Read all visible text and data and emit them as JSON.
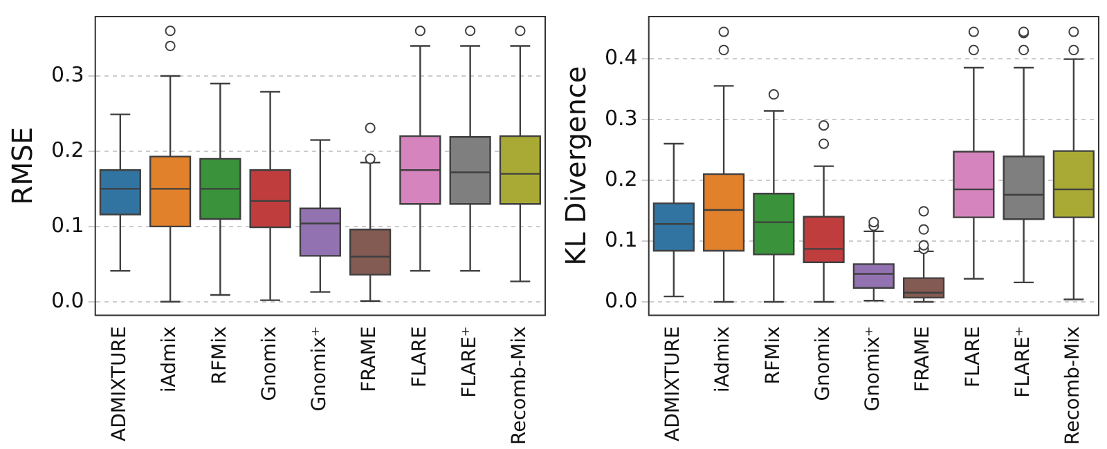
{
  "chart_data": [
    {
      "type": "box",
      "ylabel": "RMSE",
      "categories": [
        "ADMIXTURE",
        "iAdmix",
        "RFMix",
        "Gnomix",
        "Gnomix⁺",
        "FRAME",
        "FLARE",
        "FLARE⁺",
        "Recomb-Mix"
      ],
      "colors": [
        "#3274a1",
        "#e1812c",
        "#3a923a",
        "#c03d3e",
        "#9372b2",
        "#845b53",
        "#d684bd",
        "#7f7f7f",
        "#a9aa35"
      ],
      "boxes": [
        {
          "low": 0.041,
          "q1": 0.116,
          "median": 0.15,
          "q3": 0.175,
          "high": 0.249
        },
        {
          "low": 0,
          "q1": 0.1,
          "median": 0.15,
          "q3": 0.193,
          "high": 0.3,
          "outliers": [
            0.34,
            0.36
          ]
        },
        {
          "low": 0.009,
          "q1": 0.11,
          "median": 0.15,
          "q3": 0.19,
          "high": 0.29
        },
        {
          "low": 0.002,
          "q1": 0.099,
          "median": 0.134,
          "q3": 0.175,
          "high": 0.279
        },
        {
          "low": 0.013,
          "q1": 0.061,
          "median": 0.104,
          "q3": 0.124,
          "high": 0.215
        },
        {
          "low": 0.001,
          "q1": 0.036,
          "median": 0.06,
          "q3": 0.096,
          "high": 0.185,
          "outliers": [
            0.19,
            0.231
          ]
        },
        {
          "low": 0.041,
          "q1": 0.13,
          "median": 0.175,
          "q3": 0.22,
          "high": 0.34,
          "outliers": [
            0.36
          ]
        },
        {
          "low": 0.041,
          "q1": 0.13,
          "median": 0.172,
          "q3": 0.219,
          "high": 0.34,
          "outliers": [
            0.36
          ]
        },
        {
          "low": 0.027,
          "q1": 0.13,
          "median": 0.17,
          "q3": 0.22,
          "high": 0.34,
          "outliers": [
            0.36
          ]
        }
      ],
      "ylim": [
        -0.018,
        0.379
      ],
      "yticks": [
        {
          "value": 0,
          "label": "0.0"
        },
        {
          "value": 0.1,
          "label": "0.1"
        },
        {
          "value": 0.2,
          "label": "0.2"
        },
        {
          "value": 0.3,
          "label": "0.3"
        }
      ],
      "grid": "y",
      "legend": false
    },
    {
      "type": "box",
      "ylabel": "KL Divergence",
      "categories": [
        "ADMIXTURE",
        "iAdmix",
        "RFMix",
        "Gnomix",
        "Gnomix⁺",
        "FRAME",
        "FLARE",
        "FLARE⁺",
        "Recomb-Mix"
      ],
      "colors": [
        "#3274a1",
        "#e1812c",
        "#3a923a",
        "#c03d3e",
        "#9372b2",
        "#845b53",
        "#d684bd",
        "#7f7f7f",
        "#a9aa35"
      ],
      "boxes": [
        {
          "low": 0.009,
          "q1": 0.084,
          "median": 0.128,
          "q3": 0.162,
          "high": 0.26
        },
        {
          "low": 0,
          "q1": 0.084,
          "median": 0.151,
          "q3": 0.21,
          "high": 0.355,
          "outliers": [
            0.414,
            0.444
          ]
        },
        {
          "low": 0,
          "q1": 0.078,
          "median": 0.131,
          "q3": 0.178,
          "high": 0.314,
          "outliers": [
            0.341
          ]
        },
        {
          "low": 0,
          "q1": 0.065,
          "median": 0.087,
          "q3": 0.14,
          "high": 0.223,
          "outliers": [
            0.26,
            0.29
          ]
        },
        {
          "low": 0.002,
          "q1": 0.023,
          "median": 0.046,
          "q3": 0.062,
          "high": 0.116,
          "outliers": [
            0.125,
            0.131
          ]
        },
        {
          "low": 0,
          "q1": 0.007,
          "median": 0.015,
          "q3": 0.039,
          "high": 0.083,
          "outliers": [
            0.087,
            0.093,
            0.119,
            0.149
          ]
        },
        {
          "low": 0.038,
          "q1": 0.139,
          "median": 0.185,
          "q3": 0.247,
          "high": 0.385,
          "outliers": [
            0.414,
            0.444
          ]
        },
        {
          "low": 0.032,
          "q1": 0.136,
          "median": 0.176,
          "q3": 0.239,
          "high": 0.385,
          "outliers": [
            0.414,
            0.442,
            0.444
          ]
        },
        {
          "low": 0.004,
          "q1": 0.139,
          "median": 0.185,
          "q3": 0.248,
          "high": 0.399,
          "outliers": [
            0.414,
            0.444
          ]
        }
      ],
      "ylim": [
        -0.022,
        0.469
      ],
      "yticks": [
        {
          "value": 0,
          "label": "0.0"
        },
        {
          "value": 0.1,
          "label": "0.1"
        },
        {
          "value": 0.2,
          "label": "0.2"
        },
        {
          "value": 0.3,
          "label": "0.3"
        },
        {
          "value": 0.4,
          "label": "0.4"
        }
      ],
      "grid": "y",
      "legend": false
    }
  ]
}
